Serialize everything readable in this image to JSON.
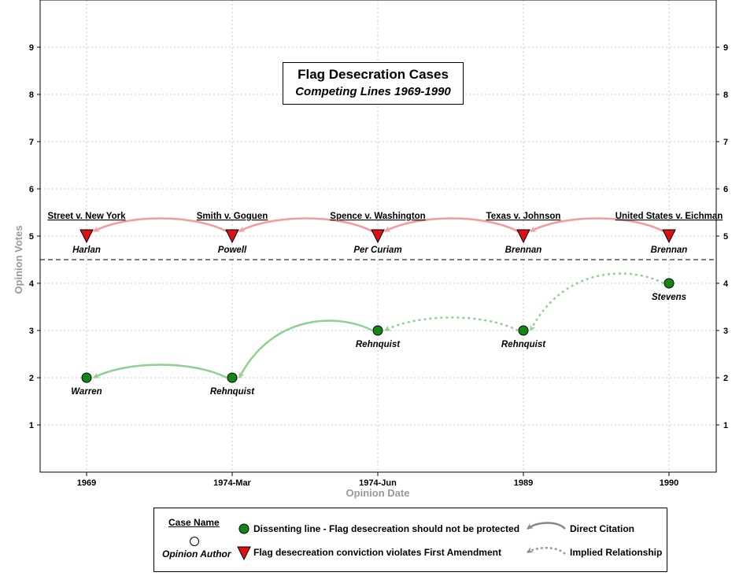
{
  "chart_data": {
    "type": "scatter",
    "title": "Flag Desecration Cases",
    "subtitle": "Competing Lines 1969-1990",
    "xlabel": "Opinion Date",
    "ylabel": "Opinion Votes",
    "categories": [
      "1969",
      "1974-Mar",
      "1974-Jun",
      "1989",
      "1990"
    ],
    "ylim": [
      0,
      10
    ],
    "yticks": [
      1,
      2,
      3,
      4,
      5,
      6,
      7,
      8,
      9
    ],
    "grid": true,
    "divider_y": 4.5,
    "cases": [
      "Street v. New York",
      "Smith v. Goguen",
      "Spence v. Washington",
      "Texas v. Johnson",
      "United States v. Eichman"
    ],
    "series": [
      {
        "name": "Flag desecreation conviction violates First Amendment",
        "marker": "triangle-down",
        "color": "#dd1111",
        "points": [
          {
            "x": "1969",
            "y": 5,
            "author": "Harlan"
          },
          {
            "x": "1974-Mar",
            "y": 5,
            "author": "Powell"
          },
          {
            "x": "1974-Jun",
            "y": 5,
            "author": "Per Curiam"
          },
          {
            "x": "1989",
            "y": 5,
            "author": "Brennan"
          },
          {
            "x": "1990",
            "y": 5,
            "author": "Brennan"
          }
        ],
        "links": [
          {
            "from": 1,
            "to": 0,
            "style": "direct"
          },
          {
            "from": 2,
            "to": 1,
            "style": "direct"
          },
          {
            "from": 3,
            "to": 2,
            "style": "direct"
          },
          {
            "from": 4,
            "to": 3,
            "style": "direct"
          }
        ],
        "link_color": "#f49a9a"
      },
      {
        "name": "Dissenting line - Flag desecreation should not be protected",
        "marker": "circle",
        "color": "#118811",
        "points": [
          {
            "x": "1969",
            "y": 2,
            "author": "Warren"
          },
          {
            "x": "1974-Mar",
            "y": 2,
            "author": "Rehnquist"
          },
          {
            "x": "1974-Jun",
            "y": 3,
            "author": "Rehnquist"
          },
          {
            "x": "1989",
            "y": 3,
            "author": "Rehnquist"
          },
          {
            "x": "1990",
            "y": 4,
            "author": "Stevens"
          }
        ],
        "links": [
          {
            "from": 1,
            "to": 0,
            "style": "direct"
          },
          {
            "from": 2,
            "to": 1,
            "style": "direct"
          },
          {
            "from": 3,
            "to": 2,
            "style": "implied"
          },
          {
            "from": 4,
            "to": 3,
            "style": "implied"
          }
        ],
        "link_color": "#8fcf8f"
      }
    ]
  },
  "legend": {
    "case_name": "Case Name",
    "opinion_author": "Opinion Author",
    "dissent": "Dissenting line - Flag desecreation should not be protected",
    "majority": "Flag desecreation conviction violates First Amendment",
    "direct": "Direct Citation",
    "implied": "Implied Relationship"
  }
}
